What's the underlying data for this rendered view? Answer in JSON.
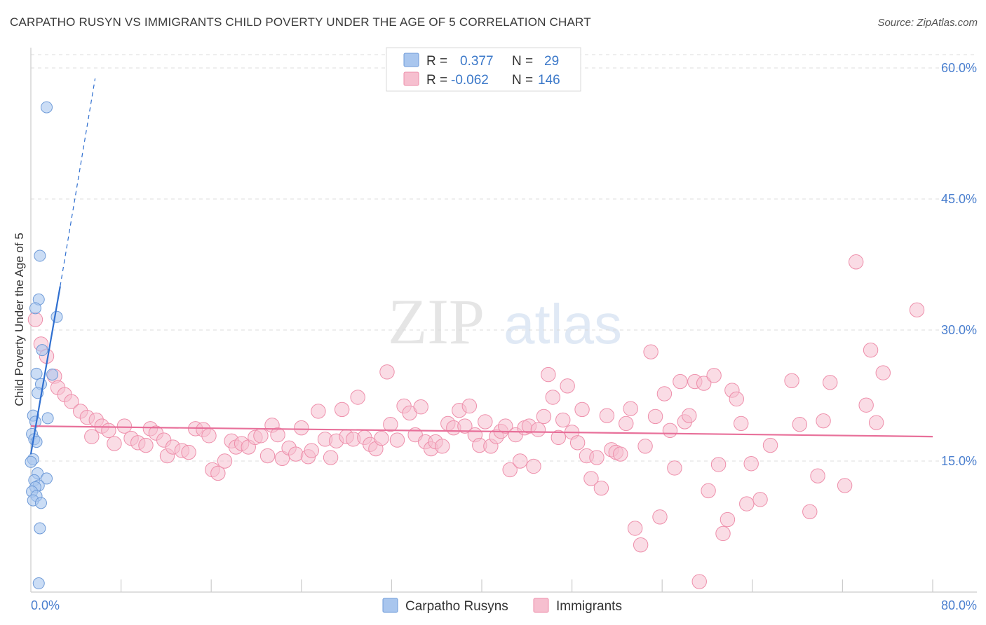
{
  "title": "CARPATHO RUSYN VS IMMIGRANTS CHILD POVERTY UNDER THE AGE OF 5 CORRELATION CHART",
  "source": "Source: ZipAtlas.com",
  "watermark": {
    "zip": "ZIP",
    "atlas": "atlas"
  },
  "colors": {
    "blue_fill": "#a9c6ee",
    "blue_stroke": "#6f9bd8",
    "blue_line": "#2f6fd0",
    "pink_fill": "#f6bfcf",
    "pink_stroke": "#ee8fab",
    "pink_line": "#e8709a",
    "tick_text": "#4a7fcf"
  },
  "legend": {
    "rows": [
      {
        "r_label": "R =",
        "r_value": "0.377",
        "n_label": "N =",
        "n_value": "29"
      },
      {
        "r_label": "R =",
        "r_value": "-0.062",
        "n_label": "N =",
        "n_value": "146"
      }
    ]
  },
  "bottom_legend": [
    "Carpatho Rusyns",
    "Immigrants"
  ],
  "chart_data": {
    "type": "scatter",
    "xlabel": "",
    "ylabel": "Child Poverty Under the Age of 5",
    "xlim": [
      0,
      80
    ],
    "ylim": [
      0,
      60.5
    ],
    "x_tick_labels": [
      {
        "value": 0,
        "label": "0.0%"
      },
      {
        "value": 80,
        "label": "80.0%"
      }
    ],
    "y_tick_labels": [
      {
        "value": 15,
        "label": "15.0%"
      },
      {
        "value": 30,
        "label": "30.0%"
      },
      {
        "value": 45,
        "label": "45.0%"
      },
      {
        "value": 60,
        "label": "60.0%"
      }
    ],
    "series": [
      {
        "name": "Carpatho Rusyns",
        "R": 0.377,
        "N": 29,
        "trend": {
          "x0": 0.0,
          "y0": 15.8,
          "x1": 2.6,
          "y1": 35.0,
          "dash_to_x": 5.7,
          "dash_to_y": 58.8
        },
        "points": [
          [
            1.4,
            55.5,
            0.2
          ],
          [
            0.8,
            38.5,
            0.2
          ],
          [
            0.7,
            33.5,
            0.2
          ],
          [
            0.4,
            32.5,
            0.2
          ],
          [
            2.3,
            31.5,
            0.2
          ],
          [
            1.0,
            27.7,
            0.2
          ],
          [
            0.5,
            25.0,
            0.2
          ],
          [
            1.9,
            24.9,
            0.2
          ],
          [
            0.9,
            23.8,
            0.2
          ],
          [
            0.6,
            22.8,
            0.2
          ],
          [
            0.2,
            20.2,
            0.2
          ],
          [
            0.4,
            19.5,
            0.2
          ],
          [
            1.5,
            19.9,
            0.2
          ],
          [
            0.1,
            18.1,
            0.2
          ],
          [
            0.3,
            17.5,
            0.2
          ],
          [
            0.5,
            17.2,
            0.2
          ],
          [
            0.2,
            15.2,
            0.2
          ],
          [
            0.0,
            14.9,
            0.2
          ],
          [
            0.6,
            13.6,
            0.2
          ],
          [
            1.4,
            13.0,
            0.2
          ],
          [
            0.3,
            12.8,
            0.2
          ],
          [
            0.7,
            12.2,
            0.2
          ],
          [
            0.4,
            12.0,
            0.2
          ],
          [
            0.1,
            11.5,
            0.2
          ],
          [
            0.5,
            11.0,
            0.2
          ],
          [
            0.2,
            10.5,
            0.2
          ],
          [
            0.9,
            10.2,
            0.2
          ],
          [
            0.8,
            7.3,
            0.2
          ],
          [
            0.7,
            1.0,
            0.2
          ]
        ]
      },
      {
        "name": "Immigrants",
        "R": -0.062,
        "N": 146,
        "trend": {
          "x0": 0.0,
          "y0": 19.0,
          "x1": 80.0,
          "y1": 17.8
        },
        "points": [
          [
            0.4,
            31.2,
            0.3
          ],
          [
            0.9,
            28.4,
            0.3
          ],
          [
            1.4,
            27.0,
            0.3
          ],
          [
            2.1,
            24.7,
            0.3
          ],
          [
            2.4,
            23.4,
            0.3
          ],
          [
            3.0,
            22.6,
            0.3
          ],
          [
            3.6,
            21.8,
            0.3
          ],
          [
            4.4,
            20.7,
            0.3
          ],
          [
            5.0,
            20.0,
            0.3
          ],
          [
            5.8,
            19.7,
            0.3
          ],
          [
            6.3,
            19.0,
            0.3
          ],
          [
            6.9,
            18.5,
            0.3
          ],
          [
            5.4,
            17.8,
            0.3
          ],
          [
            7.4,
            17.0,
            0.3
          ],
          [
            8.3,
            19.0,
            0.3
          ],
          [
            8.9,
            17.6,
            0.3
          ],
          [
            9.5,
            17.1,
            0.3
          ],
          [
            10.2,
            16.8,
            0.3
          ],
          [
            10.6,
            18.7,
            0.3
          ],
          [
            11.1,
            18.2,
            0.3
          ],
          [
            11.8,
            17.4,
            0.3
          ],
          [
            12.1,
            15.6,
            0.3
          ],
          [
            12.6,
            16.6,
            0.3
          ],
          [
            13.4,
            16.2,
            0.3
          ],
          [
            14.0,
            16.0,
            0.3
          ],
          [
            14.6,
            18.7,
            0.3
          ],
          [
            15.3,
            18.6,
            0.3
          ],
          [
            15.8,
            17.9,
            0.3
          ],
          [
            16.1,
            14.0,
            0.3
          ],
          [
            16.6,
            13.6,
            0.3
          ],
          [
            17.2,
            15.0,
            0.3
          ],
          [
            17.8,
            17.3,
            0.3
          ],
          [
            18.2,
            16.6,
            0.3
          ],
          [
            18.7,
            17.0,
            0.3
          ],
          [
            19.3,
            16.6,
            0.3
          ],
          [
            19.9,
            17.7,
            0.3
          ],
          [
            20.4,
            17.9,
            0.3
          ],
          [
            21.0,
            15.6,
            0.3
          ],
          [
            21.4,
            19.1,
            0.3
          ],
          [
            21.9,
            18.0,
            0.3
          ],
          [
            22.3,
            15.3,
            0.3
          ],
          [
            22.9,
            16.5,
            0.3
          ],
          [
            23.5,
            15.8,
            0.3
          ],
          [
            24.0,
            18.8,
            0.3
          ],
          [
            24.6,
            15.5,
            0.3
          ],
          [
            24.9,
            16.2,
            0.3
          ],
          [
            25.5,
            20.7,
            0.3
          ],
          [
            26.1,
            17.5,
            0.3
          ],
          [
            26.6,
            15.4,
            0.3
          ],
          [
            27.1,
            17.3,
            0.3
          ],
          [
            27.6,
            20.9,
            0.3
          ],
          [
            28.0,
            17.8,
            0.3
          ],
          [
            28.6,
            17.5,
            0.3
          ],
          [
            29.0,
            22.3,
            0.3
          ],
          [
            29.6,
            17.7,
            0.3
          ],
          [
            30.1,
            16.9,
            0.3
          ],
          [
            30.6,
            16.4,
            0.3
          ],
          [
            31.1,
            17.6,
            0.3
          ],
          [
            31.6,
            25.2,
            0.3
          ],
          [
            31.9,
            19.2,
            0.3
          ],
          [
            32.5,
            17.4,
            0.3
          ],
          [
            33.1,
            21.3,
            0.3
          ],
          [
            33.6,
            20.5,
            0.3
          ],
          [
            34.1,
            18.0,
            0.3
          ],
          [
            34.6,
            21.2,
            0.3
          ],
          [
            35.0,
            17.2,
            0.3
          ],
          [
            35.5,
            16.4,
            0.3
          ],
          [
            35.9,
            17.2,
            0.3
          ],
          [
            36.5,
            16.7,
            0.3
          ],
          [
            37.0,
            19.3,
            0.3
          ],
          [
            37.5,
            18.8,
            0.3
          ],
          [
            38.0,
            20.8,
            0.3
          ],
          [
            38.5,
            19.0,
            0.3
          ],
          [
            38.9,
            21.3,
            0.3
          ],
          [
            39.4,
            18.0,
            0.3
          ],
          [
            39.8,
            16.8,
            0.3
          ],
          [
            40.3,
            19.5,
            0.3
          ],
          [
            40.8,
            16.7,
            0.3
          ],
          [
            41.3,
            17.8,
            0.3
          ],
          [
            41.7,
            18.4,
            0.3
          ],
          [
            42.1,
            19.0,
            0.3
          ],
          [
            42.5,
            14.0,
            0.3
          ],
          [
            43.0,
            18.0,
            0.3
          ],
          [
            43.4,
            15.0,
            0.3
          ],
          [
            43.8,
            18.8,
            0.3
          ],
          [
            44.2,
            19.0,
            0.3
          ],
          [
            44.6,
            14.4,
            0.3
          ],
          [
            45.0,
            18.6,
            0.3
          ],
          [
            45.5,
            20.1,
            0.3
          ],
          [
            45.9,
            24.9,
            0.3
          ],
          [
            46.3,
            22.3,
            0.3
          ],
          [
            46.8,
            17.7,
            0.3
          ],
          [
            47.2,
            19.7,
            0.3
          ],
          [
            47.6,
            23.6,
            0.3
          ],
          [
            48.0,
            18.3,
            0.3
          ],
          [
            48.5,
            17.1,
            0.3
          ],
          [
            48.9,
            20.9,
            0.3
          ],
          [
            49.3,
            15.6,
            0.3
          ],
          [
            49.7,
            13.0,
            0.3
          ],
          [
            50.2,
            15.4,
            0.3
          ],
          [
            50.6,
            11.9,
            0.3
          ],
          [
            51.1,
            20.2,
            0.3
          ],
          [
            51.5,
            16.3,
            0.3
          ],
          [
            51.9,
            16.0,
            0.3
          ],
          [
            52.3,
            15.8,
            0.3
          ],
          [
            52.8,
            19.3,
            0.3
          ],
          [
            53.2,
            21.0,
            0.3
          ],
          [
            53.6,
            7.3,
            0.3
          ],
          [
            54.1,
            5.4,
            0.3
          ],
          [
            54.5,
            16.7,
            0.3
          ],
          [
            55.0,
            27.5,
            0.3
          ],
          [
            55.4,
            20.1,
            0.3
          ],
          [
            55.8,
            8.6,
            0.3
          ],
          [
            56.2,
            22.7,
            0.3
          ],
          [
            56.7,
            18.5,
            0.3
          ],
          [
            57.1,
            14.2,
            0.3
          ],
          [
            57.6,
            24.1,
            0.3
          ],
          [
            58.0,
            19.5,
            0.3
          ],
          [
            58.4,
            20.2,
            0.3
          ],
          [
            58.9,
            24.1,
            0.3
          ],
          [
            59.3,
            1.2,
            0.3
          ],
          [
            59.7,
            23.9,
            0.3
          ],
          [
            60.1,
            11.6,
            0.3
          ],
          [
            60.6,
            24.8,
            0.3
          ],
          [
            61.0,
            14.6,
            0.3
          ],
          [
            61.4,
            6.7,
            0.3
          ],
          [
            61.8,
            8.3,
            0.3
          ],
          [
            62.2,
            23.1,
            0.3
          ],
          [
            62.6,
            22.1,
            0.3
          ],
          [
            63.0,
            19.3,
            0.3
          ],
          [
            63.5,
            10.1,
            0.3
          ],
          [
            63.9,
            14.7,
            0.3
          ],
          [
            64.7,
            10.6,
            0.3
          ],
          [
            65.6,
            16.8,
            0.3
          ],
          [
            67.5,
            24.2,
            0.3
          ],
          [
            68.2,
            19.2,
            0.3
          ],
          [
            69.1,
            9.2,
            0.3
          ],
          [
            69.8,
            13.3,
            0.3
          ],
          [
            70.3,
            19.6,
            0.3
          ],
          [
            70.9,
            24.0,
            0.3
          ],
          [
            72.2,
            12.2,
            0.3
          ],
          [
            73.2,
            37.8,
            0.3
          ],
          [
            74.1,
            21.4,
            0.3
          ],
          [
            74.5,
            27.7,
            0.3
          ],
          [
            75.0,
            19.4,
            0.3
          ],
          [
            75.6,
            25.1,
            0.3
          ],
          [
            78.6,
            32.3,
            0.3
          ]
        ]
      }
    ]
  }
}
